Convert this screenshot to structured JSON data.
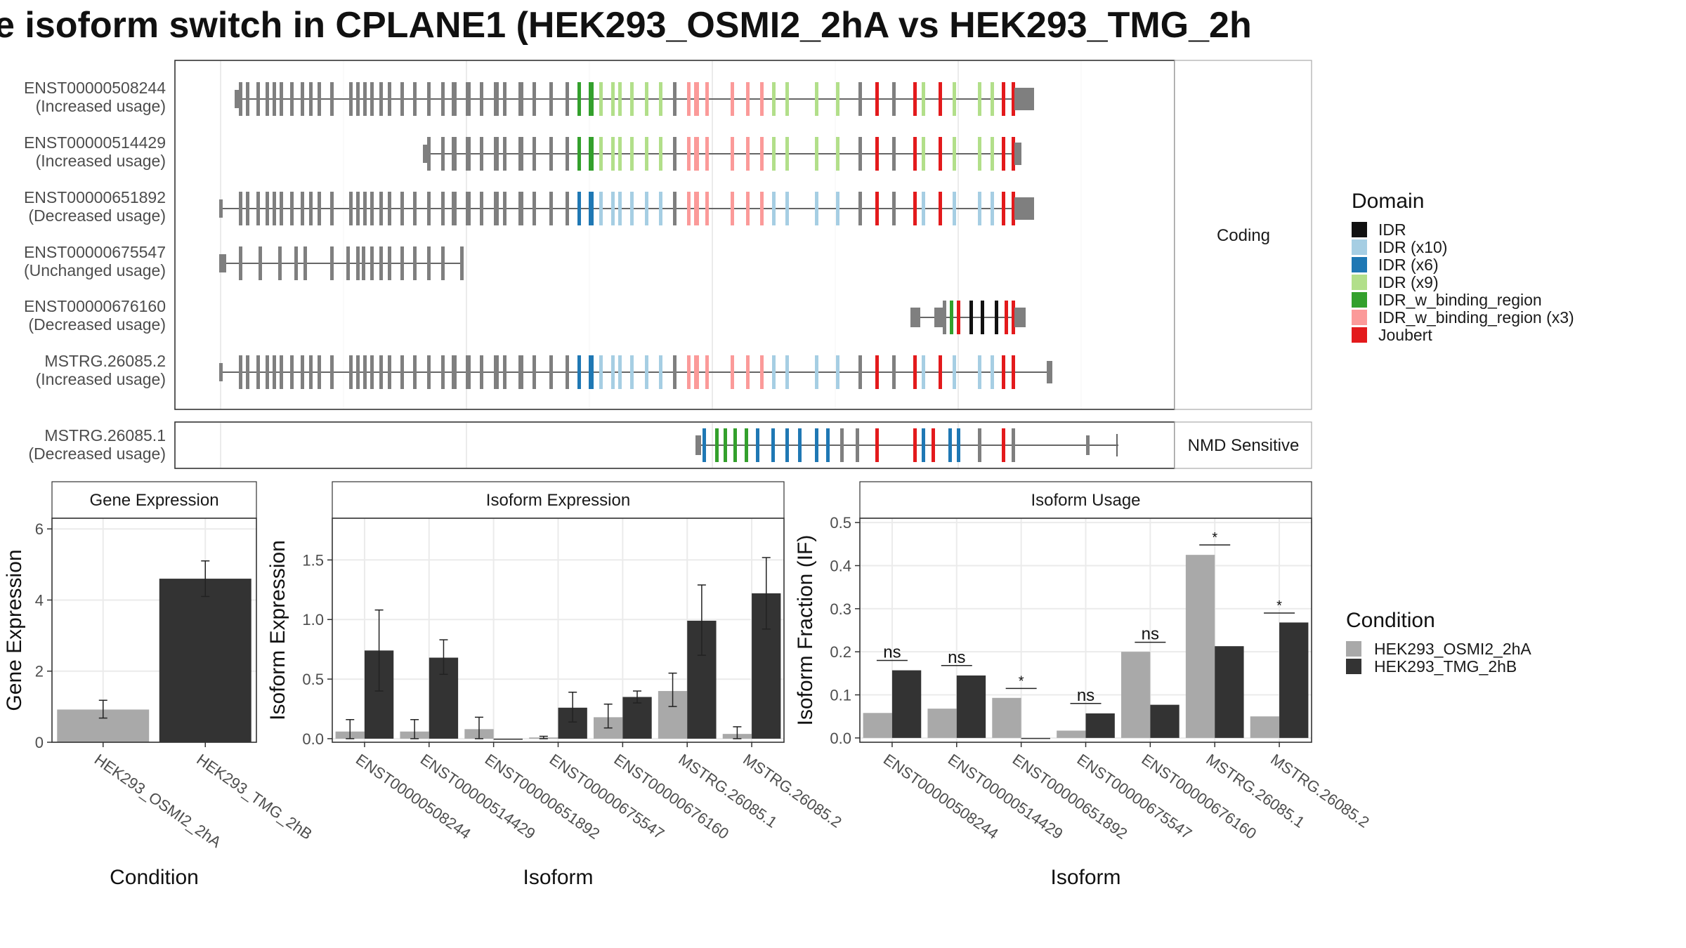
{
  "title": "e isoform switch in CPLANE1 (HEK293_OSMI2_2hA vs HEK293_TMG_2h",
  "colors": {
    "osmi": "#a9a9a9",
    "tmg": "#333333",
    "exon": "#7f7f7f",
    "domain_IDR": "#111111",
    "domain_IDR_x10": "#a6cee3",
    "domain_IDR_x6": "#1f78b4",
    "domain_IDR_x9": "#b2df8a",
    "domain_IDR_binding": "#33a02c",
    "domain_IDR_binding_x3": "#fb9a99",
    "domain_Joubert": "#e31a1c"
  },
  "structure": {
    "strip_coding": "Coding",
    "strip_nmd": "NMD Sensitive",
    "coding_transcripts": [
      {
        "id": "ENST00000508244",
        "status": "(Increased usage)"
      },
      {
        "id": "ENST00000514429",
        "status": "(Increased usage)"
      },
      {
        "id": "ENST00000651892",
        "status": "(Decreased usage)"
      },
      {
        "id": "ENST00000675547",
        "status": "(Unchanged usage)"
      },
      {
        "id": "ENST00000676160",
        "status": "(Decreased usage)"
      },
      {
        "id": "MSTRG.26085.2",
        "status": "(Increased usage)"
      }
    ],
    "nmd_transcripts": [
      {
        "id": "MSTRG.26085.1",
        "status": "(Decreased usage)"
      }
    ]
  },
  "legend_domain": {
    "title": "Domain",
    "items": [
      {
        "label": "IDR",
        "color": "#111111"
      },
      {
        "label": "IDR (x10)",
        "color": "#a6cee3"
      },
      {
        "label": "IDR (x6)",
        "color": "#1f78b4"
      },
      {
        "label": "IDR (x9)",
        "color": "#b2df8a"
      },
      {
        "label": "IDR_w_binding_region",
        "color": "#33a02c"
      },
      {
        "label": "IDR_w_binding_region (x3)",
        "color": "#fb9a99"
      },
      {
        "label": "Joubert",
        "color": "#e31a1c"
      }
    ]
  },
  "legend_condition": {
    "title": "Condition",
    "items": [
      {
        "label": "HEK293_OSMI2_2hA",
        "color": "#a9a9a9"
      },
      {
        "label": "HEK293_TMG_2hB",
        "color": "#333333"
      }
    ]
  },
  "chart_data": [
    {
      "type": "bar",
      "panel": "Gene Expression",
      "xlabel": "Condition",
      "ylabel": "Gene Expression",
      "ylim": [
        0,
        6.3
      ],
      "yticks": [
        0,
        2,
        4,
        6
      ],
      "categories": [
        "HEK293_OSMI2_2hA",
        "HEK293_TMG_2hB"
      ],
      "values": [
        0.92,
        4.6
      ],
      "errors": [
        [
          0.68,
          1.18
        ],
        [
          4.1,
          5.1
        ]
      ],
      "colors": [
        "#a9a9a9",
        "#333333"
      ]
    },
    {
      "type": "bar",
      "panel": "Isoform Expression",
      "xlabel": "Isoform",
      "ylabel": "Isoform Expression",
      "ylim": [
        -0.03,
        1.85
      ],
      "yticks": [
        0.0,
        0.5,
        1.0,
        1.5
      ],
      "categories": [
        "ENST00000508244",
        "ENST00000514429",
        "ENST00000651892",
        "ENST00000675547",
        "ENST00000676160",
        "MSTRG.26085.1",
        "MSTRG.26085.2"
      ],
      "series": [
        {
          "name": "HEK293_OSMI2_2hA",
          "values": [
            0.06,
            0.06,
            0.08,
            0.01,
            0.18,
            0.4,
            0.04
          ],
          "errors": [
            [
              0.0,
              0.16
            ],
            [
              0.0,
              0.16
            ],
            [
              0.0,
              0.18
            ],
            [
              0.0,
              0.02
            ],
            [
              0.09,
              0.29
            ],
            [
              0.27,
              0.55
            ],
            [
              0.0,
              0.1
            ]
          ]
        },
        {
          "name": "HEK293_TMG_2hB",
          "values": [
            0.74,
            0.68,
            0.0,
            0.26,
            0.35,
            0.99,
            1.22
          ],
          "errors": [
            [
              0.4,
              1.08
            ],
            [
              0.54,
              0.83
            ],
            [
              0.0,
              0.0
            ],
            [
              0.14,
              0.39
            ],
            [
              0.3,
              0.4
            ],
            [
              0.7,
              1.29
            ],
            [
              0.92,
              1.52
            ]
          ]
        }
      ]
    },
    {
      "type": "bar",
      "panel": "Isoform Usage",
      "xlabel": "Isoform",
      "ylabel": "Isoform Fraction (IF)",
      "ylim": [
        -0.01,
        0.51
      ],
      "yticks": [
        0.0,
        0.1,
        0.2,
        0.3,
        0.4,
        0.5
      ],
      "categories": [
        "ENST00000508244",
        "ENST00000514429",
        "ENST00000651892",
        "ENST00000675547",
        "ENST00000676160",
        "MSTRG.26085.1",
        "MSTRG.26085.2"
      ],
      "series": [
        {
          "name": "HEK293_OSMI2_2hA",
          "values": [
            0.058,
            0.068,
            0.093,
            0.017,
            0.2,
            0.425,
            0.05
          ]
        },
        {
          "name": "HEK293_TMG_2hB",
          "values": [
            0.157,
            0.145,
            0.0,
            0.057,
            0.077,
            0.213,
            0.268
          ]
        }
      ],
      "annotations": [
        {
          "category": "ENST00000508244",
          "label": "ns",
          "y": 0.18
        },
        {
          "category": "ENST00000514429",
          "label": "ns",
          "y": 0.168
        },
        {
          "category": "ENST00000651892",
          "label": "*",
          "y": 0.115
        },
        {
          "category": "ENST00000675547",
          "label": "ns",
          "y": 0.08
        },
        {
          "category": "ENST00000676160",
          "label": "ns",
          "y": 0.222
        },
        {
          "category": "MSTRG.26085.1",
          "label": "*",
          "y": 0.448
        },
        {
          "category": "MSTRG.26085.2",
          "label": "*",
          "y": 0.29
        }
      ]
    }
  ]
}
